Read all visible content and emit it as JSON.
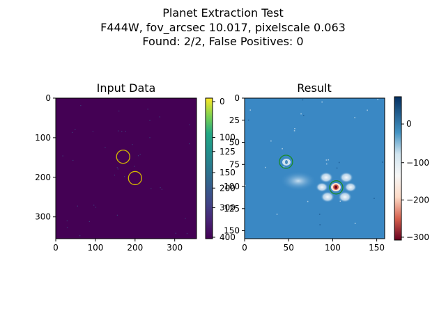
{
  "figure": {
    "title_lines": [
      "Planet Extraction Test",
      "F444W, fov_arcsec 10.017, pixelscale 0.063",
      "Found: 2/2, False Positives: 0"
    ]
  },
  "chart_data": [
    {
      "type": "heatmap",
      "title": "Input Data",
      "colormap": "viridis",
      "background_color": "#440154",
      "x_ticks": [
        "0",
        "100",
        "200",
        "300"
      ],
      "y_ticks": [
        "0",
        "100",
        "200",
        "300"
      ],
      "xlim": [
        0,
        355
      ],
      "ylim": [
        355,
        0
      ],
      "markers": [
        {
          "x": 170,
          "y": 148,
          "color": "#d4b800"
        },
        {
          "x": 200,
          "y": 202,
          "color": "#d4b800"
        }
      ],
      "colorbar": {
        "ticks": [
          "0",
          "100",
          "125",
          "150",
          "200",
          "300",
          "400"
        ]
      }
    },
    {
      "type": "heatmap",
      "title": "Result",
      "colormap": "RdBu",
      "background_color": "#3a88c4",
      "x_ticks": [
        "0",
        "50",
        "100",
        "150"
      ],
      "y_ticks": [
        "0",
        "25",
        "50",
        "75",
        "100",
        "125",
        "150"
      ],
      "xlim": [
        0,
        159
      ],
      "ylim": [
        159,
        0
      ],
      "markers": [
        {
          "x": 47,
          "y": 72,
          "color": "#1a8a2a"
        },
        {
          "x": 104,
          "y": 101,
          "color": "#1a8a2a"
        }
      ],
      "colorbar": {
        "ticks": [
          "0",
          "−100",
          "−200",
          "−300"
        ]
      }
    }
  ]
}
